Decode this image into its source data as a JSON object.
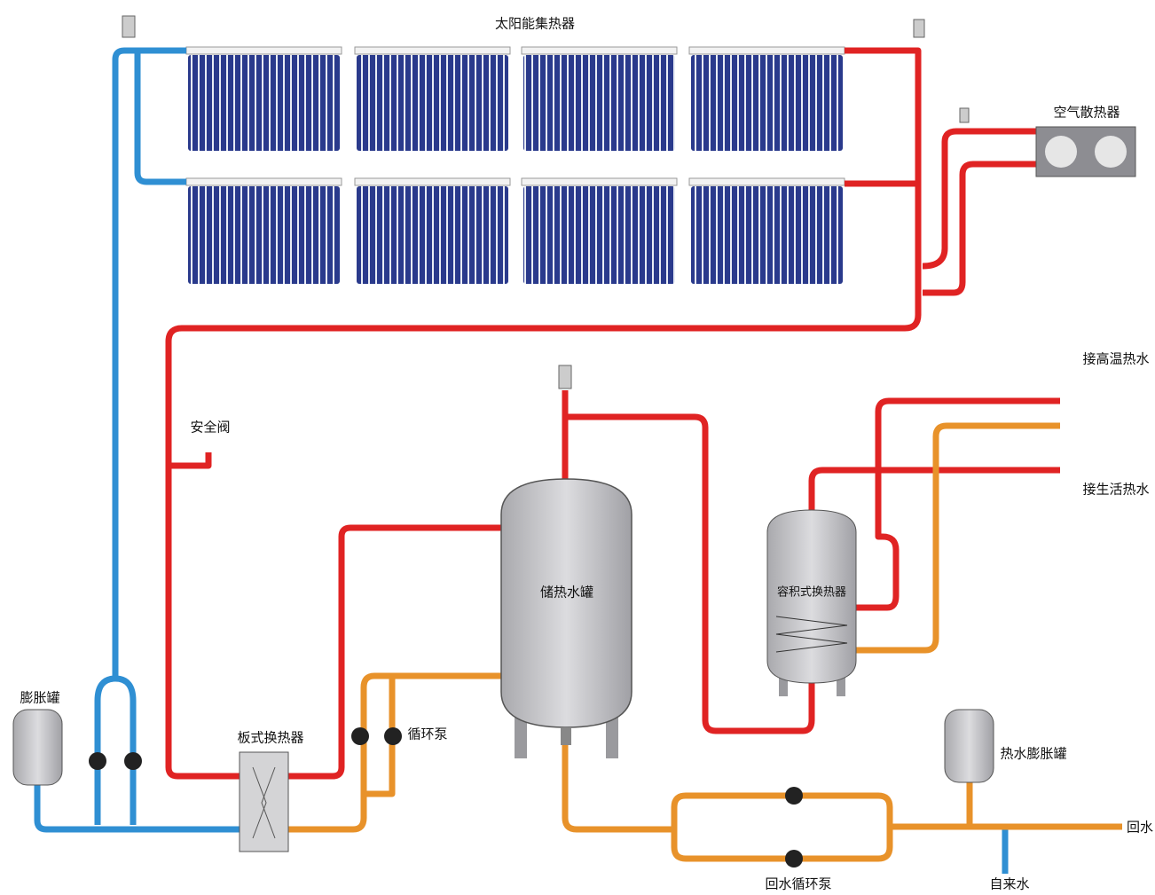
{
  "nodes": [
    {
      "label": "太阳能集热器"
    },
    {
      "label": "空气散热器"
    },
    {
      "label": "接高温热水"
    },
    {
      "label": "接生活热水"
    },
    {
      "label": "安全阀"
    },
    {
      "label": "储热水罐"
    },
    {
      "label": "容积式换热器"
    },
    {
      "label": "膨胀罐"
    },
    {
      "label": "板式换热器"
    },
    {
      "label": "循环泵"
    },
    {
      "label": "热水膨胀罐"
    },
    {
      "label": "回水"
    },
    {
      "label": "回水循环泵"
    },
    {
      "label": "自来水"
    }
  ]
}
